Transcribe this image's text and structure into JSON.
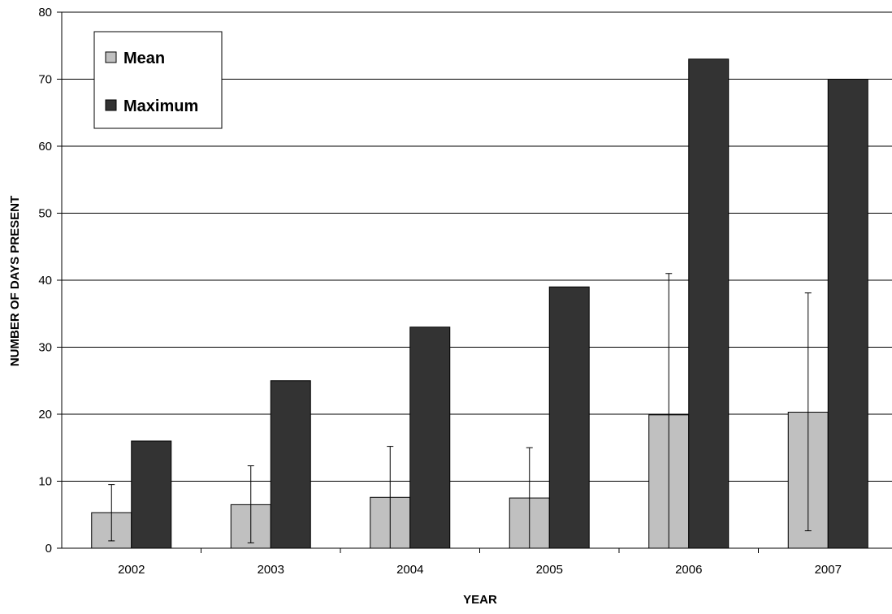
{
  "chart_data": {
    "type": "bar",
    "title": "",
    "xlabel": "YEAR",
    "ylabel": "NUMBER OF DAYS PRESENT",
    "categories": [
      "2002",
      "2003",
      "2004",
      "2005",
      "2006",
      "2007"
    ],
    "series": [
      {
        "name": "Mean",
        "color": "#c0c0c0",
        "values": [
          5.3,
          6.5,
          7.6,
          7.5,
          19.9,
          20.3
        ],
        "error_low": [
          1.1,
          0.8,
          0,
          0,
          0,
          2.6
        ],
        "error_high": [
          9.5,
          12.3,
          15.2,
          15.0,
          41.0,
          38.1
        ]
      },
      {
        "name": "Maximum",
        "color": "#333333",
        "values": [
          16,
          25,
          33,
          39,
          73,
          70
        ]
      }
    ],
    "ylim": [
      0,
      80
    ],
    "yticks": [
      0,
      10,
      20,
      30,
      40,
      50,
      60,
      70,
      80
    ],
    "grid": true,
    "legend_position": "top-left"
  }
}
